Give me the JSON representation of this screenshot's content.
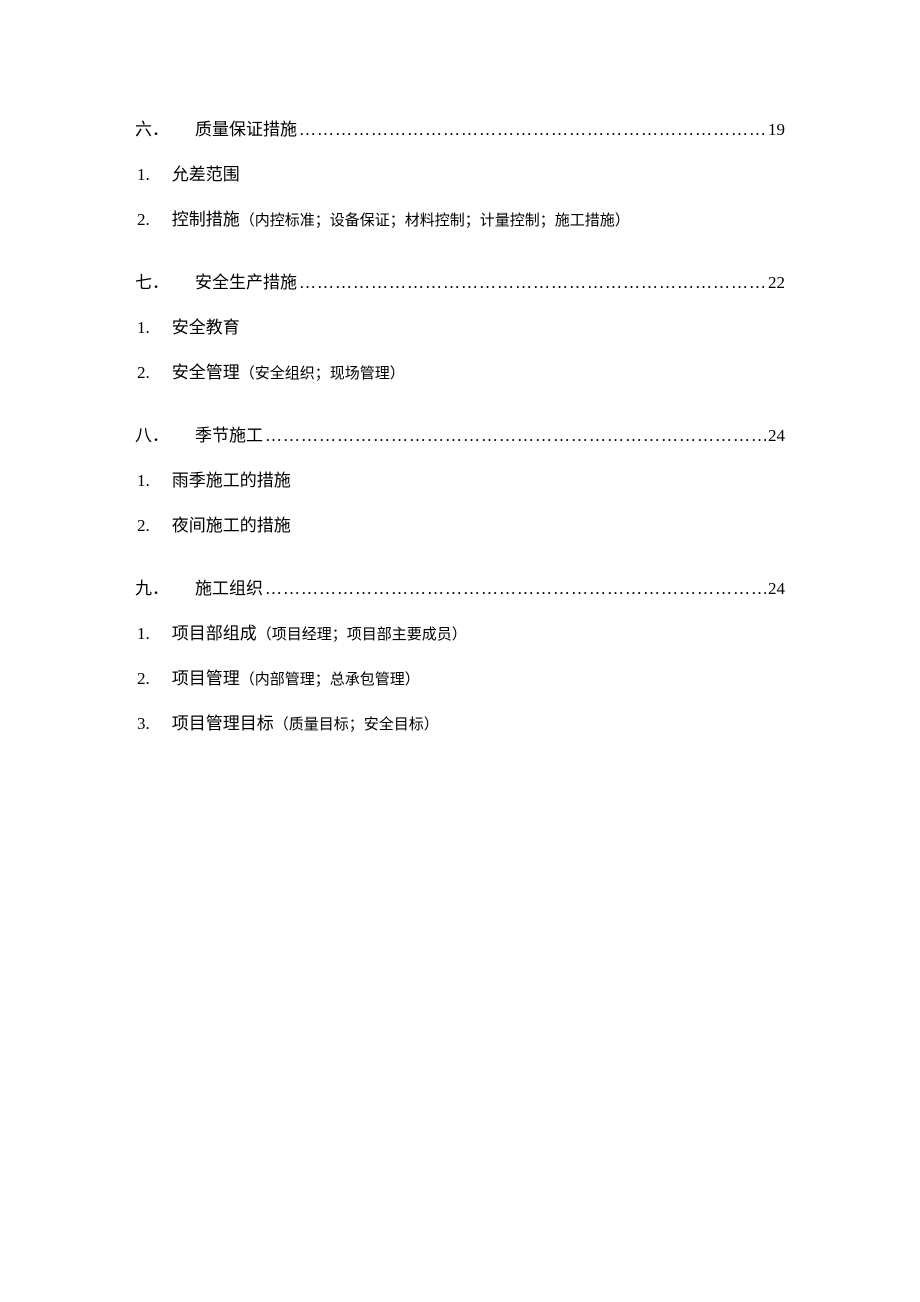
{
  "page": {
    "background_color": "#ffffff",
    "text_color": "#000000",
    "heading_fontsize": 17,
    "body_fontsize": 17,
    "detail_fontsize": 15,
    "font_family": "SimSun"
  },
  "sections": [
    {
      "number": "六．",
      "title": "质量保证措施",
      "page": "19",
      "items": [
        {
          "num": "1.",
          "text": "允差范围",
          "detail": ""
        },
        {
          "num": "2.",
          "text": "控制措施",
          "detail": "（内控标准；设备保证；材料控制；计量控制；施工措施）"
        }
      ]
    },
    {
      "number": "七．",
      "title": "安全生产措施",
      "page": "22",
      "items": [
        {
          "num": "1.",
          "text": "安全教育",
          "detail": ""
        },
        {
          "num": "2.",
          "text": "安全管理",
          "detail": "（安全组织；现场管理）"
        }
      ]
    },
    {
      "number": "八．",
      "title": "季节施工",
      "page": "24",
      "items": [
        {
          "num": "1.",
          "text": "雨季施工的措施",
          "detail": ""
        },
        {
          "num": "2.",
          "text": "夜间施工的措施",
          "detail": ""
        }
      ]
    },
    {
      "number": "九．",
      "title": "施工组织",
      "page": "24",
      "items": [
        {
          "num": "1.",
          "text": "项目部组成",
          "detail": "（项目经理；项目部主要成员）"
        },
        {
          "num": "2.",
          "text": "项目管理",
          "detail": "（内部管理；总承包管理）"
        },
        {
          "num": "3.",
          "text": "项目管理目标",
          "detail": "（质量目标；安全目标）"
        }
      ]
    }
  ],
  "leader_dots": "…………………………………………………………………………"
}
